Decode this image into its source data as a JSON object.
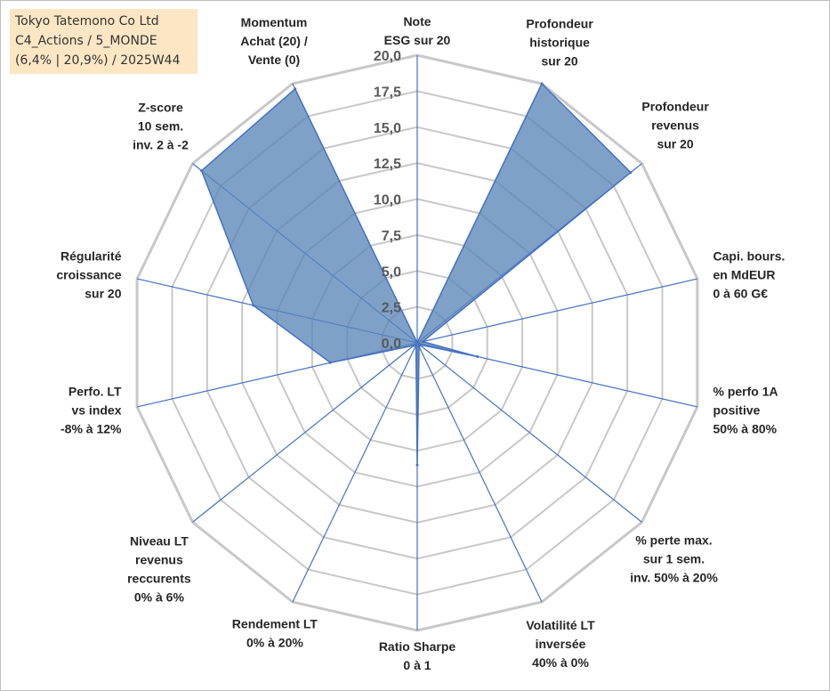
{
  "info": {
    "line1": "Tokyo Tatemono Co Ltd",
    "line2": "C4_Actions / 5_MONDE",
    "line3": "(6,4% | 20,9%) / 2025W44"
  },
  "chart_data": {
    "type": "radar",
    "rmin": 0,
    "rmax": 20,
    "ticks": [
      "0,0",
      "2,5",
      "5,0",
      "7,5",
      "10,0",
      "12,5",
      "15,0",
      "17,5",
      "20,0"
    ],
    "grid": true,
    "colors": {
      "fill": "#5b86b8",
      "line": "#4472c4",
      "grid": "#c8c8c8"
    },
    "axes": [
      {
        "lines": [
          "Note",
          "ESG sur 20"
        ],
        "value": 0
      },
      {
        "lines": [
          "Profondeur",
          "historique",
          "sur 20"
        ],
        "value": 20
      },
      {
        "lines": [
          "Profondeur",
          "revenus",
          "sur 20"
        ],
        "value": 19
      },
      {
        "lines": [
          "Capi. bours.",
          "en MdEUR",
          "0 à 60 G€"
        ],
        "value": 0.4
      },
      {
        "lines": [
          "% perfo 1A",
          "positive",
          "50% à 80%"
        ],
        "value": 4.3
      },
      {
        "lines": [
          "% perte max.",
          "sur 1 sem.",
          "inv. 50% à 20%"
        ],
        "value": 0.2
      },
      {
        "lines": [
          "Volatilité LT",
          "inversée",
          "40% à 0%"
        ],
        "value": 0.3
      },
      {
        "lines": [
          "Ratio Sharpe",
          "0 à 1"
        ],
        "value": 8.5
      },
      {
        "lines": [
          "Rendement LT",
          "0% à 20%"
        ],
        "value": 0.2
      },
      {
        "lines": [
          "Niveau LT",
          "revenus",
          "reccurents",
          "0% à 6%"
        ],
        "value": 0.3
      },
      {
        "lines": [
          "Perfo. LT",
          "vs index",
          "-8% à 12%"
        ],
        "value": 6.2
      },
      {
        "lines": [
          "Régularité",
          "croissance",
          "sur 20"
        ],
        "value": 11.7
      },
      {
        "lines": [
          "Z-score",
          "10 sem.",
          "inv. 2 à -2"
        ],
        "value": 19.2
      },
      {
        "lines": [
          "Momentum",
          "Achat (20) /",
          "Vente (0)"
        ],
        "value": 19.6
      }
    ]
  }
}
